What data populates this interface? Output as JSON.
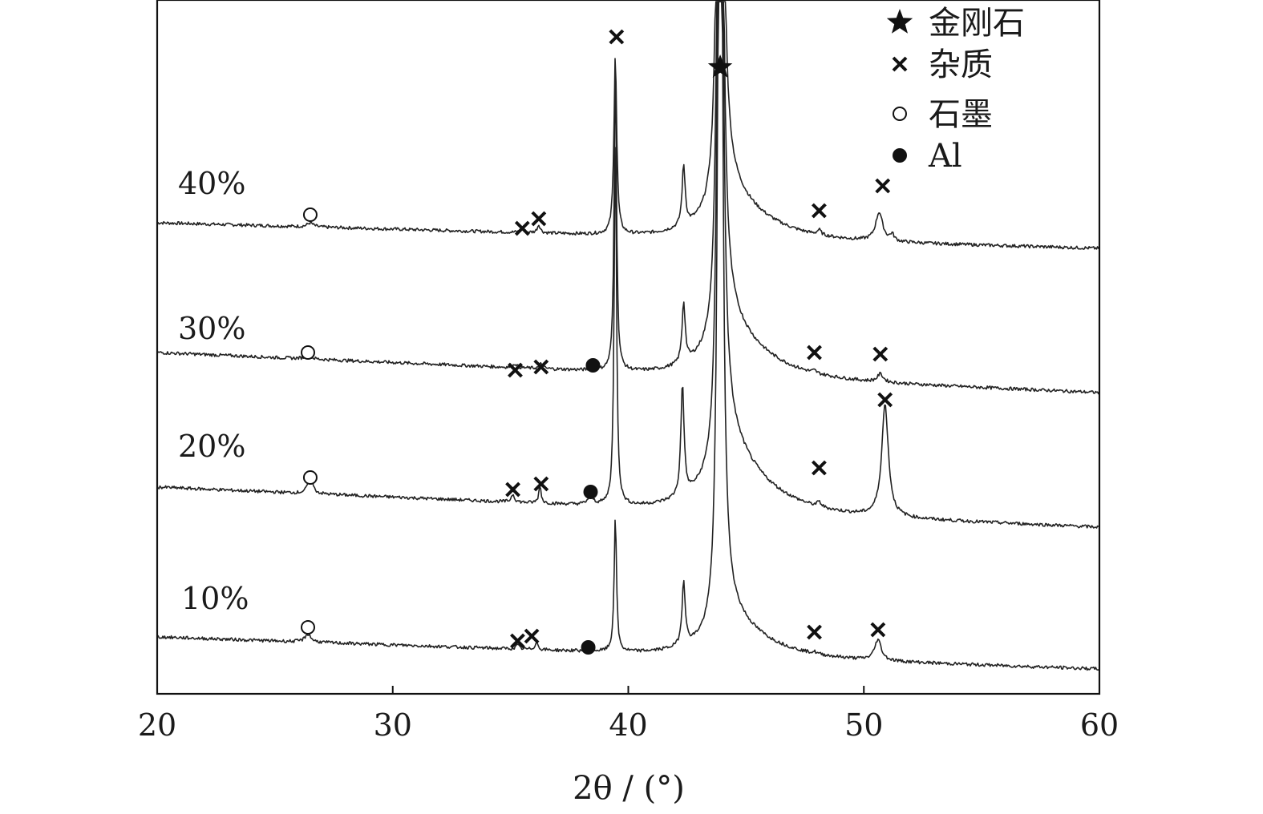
{
  "chart_data": {
    "type": "line",
    "xlabel": "2θ / (°)",
    "xlim": [
      20,
      60
    ],
    "x_ticks": [
      20,
      30,
      40,
      50,
      60
    ],
    "y_axis": "stacked intensity, no scale shown",
    "grid": false,
    "legend_position": "top-right",
    "legend": [
      {
        "symbol": "star",
        "label": "金刚石"
      },
      {
        "symbol": "cross",
        "label": "杂质"
      },
      {
        "symbol": "open-circle",
        "label": "石墨"
      },
      {
        "symbol": "filled-circle",
        "label": "Al"
      }
    ],
    "series": [
      {
        "name": "40%",
        "peaks": [
          {
            "x": 26.5,
            "phase": "石墨"
          },
          {
            "x": 35.5,
            "phase": "杂质"
          },
          {
            "x": 36.2,
            "phase": "杂质"
          },
          {
            "x": 39.5,
            "phase": "杂质"
          },
          {
            "x": 43.9,
            "phase": "金刚石"
          },
          {
            "x": 48.1,
            "phase": "杂质"
          },
          {
            "x": 50.8,
            "phase": "杂质"
          }
        ]
      },
      {
        "name": "30%",
        "peaks": [
          {
            "x": 26.4,
            "phase": "石墨"
          },
          {
            "x": 35.2,
            "phase": "杂质"
          },
          {
            "x": 36.3,
            "phase": "杂质"
          },
          {
            "x": 38.5,
            "phase": "Al"
          },
          {
            "x": 47.9,
            "phase": "杂质"
          },
          {
            "x": 50.7,
            "phase": "杂质"
          }
        ]
      },
      {
        "name": "20%",
        "peaks": [
          {
            "x": 26.5,
            "phase": "石墨"
          },
          {
            "x": 35.1,
            "phase": "杂质"
          },
          {
            "x": 36.3,
            "phase": "杂质"
          },
          {
            "x": 38.4,
            "phase": "Al"
          },
          {
            "x": 48.1,
            "phase": "杂质"
          },
          {
            "x": 50.9,
            "phase": "杂质"
          }
        ]
      },
      {
        "name": "10%",
        "peaks": [
          {
            "x": 26.4,
            "phase": "石墨"
          },
          {
            "x": 35.3,
            "phase": "杂质"
          },
          {
            "x": 35.9,
            "phase": "杂质"
          },
          {
            "x": 38.3,
            "phase": "Al"
          },
          {
            "x": 47.9,
            "phase": "杂质"
          },
          {
            "x": 50.6,
            "phase": "杂质"
          }
        ]
      }
    ]
  }
}
